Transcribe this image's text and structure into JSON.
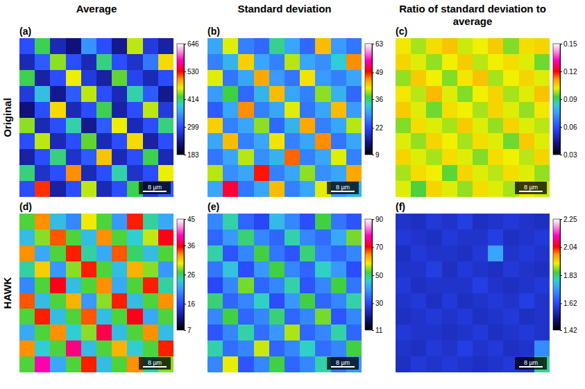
{
  "column_titles": [
    "Average",
    "Standard deviation",
    "Ratio of standard deviation to average"
  ],
  "row_labels": [
    "Original",
    "HAWK"
  ],
  "chart_data": [
    {
      "type": "heatmap",
      "title": "(a)",
      "scale_bar": "8 µm",
      "colorbar": {
        "range": [
          183,
          646
        ],
        "ticks": [
          183,
          299,
          414,
          530,
          646
        ]
      },
      "cells": [
        [
          300,
          420,
          260,
          230,
          350,
          300,
          240,
          450,
          280,
          250
        ],
        [
          260,
          310,
          440,
          300,
          260,
          410,
          300,
          270,
          330,
          470
        ],
        [
          420,
          250,
          300,
          460,
          280,
          250,
          430,
          290,
          260,
          300
        ],
        [
          280,
          380,
          240,
          310,
          450,
          300,
          260,
          400,
          310,
          240
        ],
        [
          230,
          300,
          470,
          260,
          300,
          420,
          250,
          300,
          450,
          280
        ],
        [
          440,
          260,
          300,
          400,
          240,
          310,
          460,
          260,
          300,
          410
        ],
        [
          300,
          450,
          260,
          300,
          430,
          260,
          300,
          470,
          250,
          300
        ],
        [
          250,
          300,
          410,
          270,
          310,
          480,
          260,
          300,
          420,
          260
        ],
        [
          410,
          270,
          300,
          500,
          260,
          300,
          400,
          270,
          300,
          460
        ],
        [
          300,
          520,
          250,
          300,
          450,
          260,
          300,
          420,
          280,
          310
        ]
      ]
    },
    {
      "type": "heatmap",
      "title": "(b)",
      "scale_bar": "8 µm",
      "colorbar": {
        "range": [
          9,
          63
        ],
        "ticks": [
          9,
          22,
          36,
          49,
          63
        ]
      },
      "cells": [
        [
          30,
          41,
          27,
          25,
          35,
          30,
          25,
          44,
          29,
          26
        ],
        [
          27,
          31,
          43,
          30,
          27,
          40,
          30,
          28,
          33,
          46
        ],
        [
          41,
          26,
          30,
          45,
          29,
          26,
          42,
          29,
          27,
          30
        ],
        [
          29,
          37,
          25,
          31,
          44,
          30,
          27,
          39,
          31,
          25
        ],
        [
          24,
          30,
          46,
          27,
          30,
          41,
          26,
          30,
          44,
          29
        ],
        [
          43,
          27,
          30,
          39,
          25,
          31,
          45,
          27,
          30,
          40
        ],
        [
          30,
          44,
          27,
          30,
          42,
          27,
          30,
          46,
          26,
          30
        ],
        [
          26,
          30,
          40,
          28,
          31,
          47,
          27,
          30,
          41,
          27
        ],
        [
          40,
          28,
          30,
          49,
          27,
          30,
          39,
          28,
          30,
          45
        ],
        [
          30,
          51,
          26,
          30,
          44,
          27,
          30,
          41,
          29,
          31
        ]
      ]
    },
    {
      "type": "heatmap",
      "title": "(c)",
      "scale_bar": "8 µm",
      "colorbar": {
        "range": [
          0.03,
          0.15
        ],
        "ticks": [
          0.03,
          0.06,
          0.09,
          0.12,
          0.15
        ]
      },
      "cells": [
        [
          0.103,
          0.098,
          0.104,
          0.107,
          0.1,
          0.102,
          0.106,
          0.096,
          0.104,
          0.105
        ],
        [
          0.105,
          0.101,
          0.097,
          0.102,
          0.106,
          0.099,
          0.102,
          0.104,
          0.101,
          0.095
        ],
        [
          0.097,
          0.106,
          0.102,
          0.096,
          0.103,
          0.107,
          0.098,
          0.102,
          0.105,
          0.101
        ],
        [
          0.103,
          0.099,
          0.108,
          0.101,
          0.096,
          0.102,
          0.105,
          0.098,
          0.101,
          0.107
        ],
        [
          0.106,
          0.101,
          0.095,
          0.104,
          0.102,
          0.098,
          0.105,
          0.101,
          0.097,
          0.103
        ],
        [
          0.096,
          0.104,
          0.101,
          0.098,
          0.106,
          0.101,
          0.097,
          0.105,
          0.101,
          0.099
        ],
        [
          0.101,
          0.097,
          0.105,
          0.102,
          0.098,
          0.104,
          0.101,
          0.095,
          0.106,
          0.101
        ],
        [
          0.105,
          0.101,
          0.098,
          0.104,
          0.101,
          0.096,
          0.104,
          0.102,
          0.099,
          0.105
        ],
        [
          0.098,
          0.104,
          0.102,
          0.094,
          0.105,
          0.101,
          0.099,
          0.104,
          0.101,
          0.097
        ],
        [
          0.101,
          0.093,
          0.105,
          0.101,
          0.097,
          0.104,
          0.101,
          0.098,
          0.103,
          0.1
        ]
      ]
    },
    {
      "type": "heatmap",
      "title": "(d)",
      "scale_bar": "8 µm",
      "colorbar": {
        "range": [
          7,
          45
        ],
        "ticks": [
          7,
          16,
          26,
          36,
          45
        ]
      },
      "cells": [
        [
          27,
          33,
          23,
          20,
          30,
          27,
          21,
          35,
          25,
          22
        ],
        [
          23,
          28,
          34,
          27,
          23,
          33,
          27,
          24,
          29,
          36
        ],
        [
          33,
          22,
          27,
          35,
          25,
          22,
          34,
          26,
          23,
          27
        ],
        [
          25,
          31,
          21,
          28,
          35,
          27,
          23,
          32,
          28,
          21
        ],
        [
          20,
          27,
          36,
          23,
          27,
          33,
          22,
          27,
          35,
          25
        ],
        [
          34,
          23,
          27,
          32,
          21,
          28,
          35,
          23,
          27,
          33
        ],
        [
          27,
          35,
          23,
          27,
          34,
          23,
          27,
          36,
          22,
          27
        ],
        [
          22,
          27,
          33,
          24,
          28,
          37,
          23,
          27,
          33,
          23
        ],
        [
          33,
          24,
          27,
          38,
          23,
          27,
          32,
          24,
          27,
          35
        ],
        [
          27,
          39,
          22,
          27,
          35,
          23,
          27,
          33,
          25,
          28
        ]
      ]
    },
    {
      "type": "heatmap",
      "title": "(e)",
      "scale_bar": "8 µm",
      "colorbar": {
        "range": [
          11,
          90
        ],
        "ticks": [
          11,
          30,
          50,
          70,
          90
        ]
      },
      "cells": [
        [
          38,
          48,
          34,
          30,
          44,
          38,
          31,
          52,
          36,
          32
        ],
        [
          34,
          40,
          50,
          38,
          34,
          48,
          38,
          35,
          42,
          54
        ],
        [
          48,
          32,
          38,
          52,
          36,
          32,
          50,
          37,
          34,
          38
        ],
        [
          36,
          45,
          31,
          40,
          52,
          38,
          34,
          47,
          40,
          31
        ],
        [
          30,
          38,
          54,
          34,
          38,
          48,
          32,
          38,
          52,
          36
        ],
        [
          50,
          34,
          38,
          47,
          31,
          40,
          52,
          34,
          38,
          48
        ],
        [
          38,
          52,
          34,
          38,
          50,
          34,
          38,
          54,
          32,
          38
        ],
        [
          32,
          38,
          48,
          35,
          40,
          56,
          34,
          38,
          48,
          34
        ],
        [
          48,
          35,
          38,
          57,
          34,
          38,
          47,
          35,
          38,
          52
        ],
        [
          38,
          58,
          32,
          38,
          52,
          34,
          38,
          48,
          36,
          40
        ]
      ]
    },
    {
      "type": "heatmap",
      "title": "(f)",
      "scale_bar": "8 µm",
      "colorbar": {
        "range": [
          1.42,
          2.25
        ],
        "ticks": [
          1.42,
          1.62,
          1.83,
          2.04,
          2.25
        ]
      },
      "cells": [
        [
          1.58,
          1.57,
          1.59,
          1.58,
          1.6,
          1.57,
          1.58,
          1.59,
          1.58,
          1.57
        ],
        [
          1.59,
          1.58,
          1.57,
          1.59,
          1.58,
          1.58,
          1.6,
          1.57,
          1.58,
          1.59
        ],
        [
          1.57,
          1.59,
          1.58,
          1.58,
          1.57,
          1.59,
          1.74,
          1.58,
          1.59,
          1.58
        ],
        [
          1.58,
          1.58,
          1.6,
          1.57,
          1.59,
          1.58,
          1.57,
          1.59,
          1.58,
          1.57
        ],
        [
          1.59,
          1.57,
          1.58,
          1.58,
          1.58,
          1.6,
          1.58,
          1.57,
          1.58,
          1.59
        ],
        [
          1.58,
          1.59,
          1.57,
          1.59,
          1.57,
          1.58,
          1.59,
          1.58,
          1.6,
          1.58
        ],
        [
          1.57,
          1.58,
          1.59,
          1.58,
          1.59,
          1.57,
          1.58,
          1.59,
          1.57,
          1.58
        ],
        [
          1.59,
          1.58,
          1.58,
          1.57,
          1.58,
          1.59,
          1.57,
          1.58,
          1.59,
          1.58
        ],
        [
          1.58,
          1.57,
          1.59,
          1.58,
          1.6,
          1.58,
          1.59,
          1.57,
          1.58,
          1.71
        ],
        [
          1.57,
          1.59,
          1.58,
          1.59,
          1.58,
          1.57,
          1.58,
          1.59,
          1.58,
          1.82
        ]
      ]
    }
  ]
}
